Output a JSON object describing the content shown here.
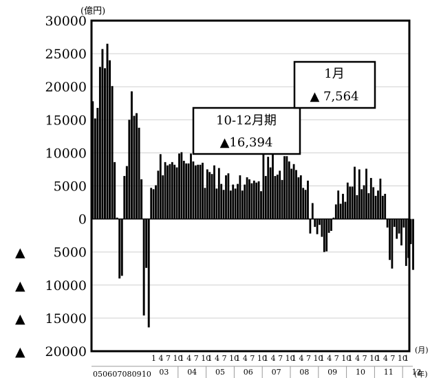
{
  "chart_data": {
    "type": "bar",
    "ylim": [
      -20000,
      30000
    ],
    "yticks": [
      {
        "value": 30000,
        "label": "30000"
      },
      {
        "value": 25000,
        "label": "25000"
      },
      {
        "value": 20000,
        "label": "20000"
      },
      {
        "value": 15000,
        "label": "15000"
      },
      {
        "value": 10000,
        "label": "10000"
      },
      {
        "value": 5000,
        "label": "5000"
      },
      {
        "value": 0,
        "label": "0"
      },
      {
        "value": -5000,
        "label": "▲ 5000"
      },
      {
        "value": -10000,
        "label": "▲ 10000"
      },
      {
        "value": -15000,
        "label": "▲ 15000"
      },
      {
        "value": -20000,
        "label": "▲ 20000"
      }
    ],
    "ylabel": "(億円)",
    "x_unit_month": "(月)",
    "x_unit_year": "(年)",
    "early_year_labels": [
      "05",
      "06",
      "07",
      "08",
      "09",
      "10"
    ],
    "month_label_text": "1 4 7 10",
    "years": [
      "03",
      "04",
      "05",
      "06",
      "07",
      "08",
      "09",
      "10",
      "11",
      "12"
    ],
    "early_values": [
      17800,
      15200,
      16800,
      23000,
      25700,
      22800,
      26500,
      24000,
      20100,
      8600,
      200,
      -9000,
      -8600,
      6500,
      8000,
      15000,
      19300,
      15600,
      16000,
      13800,
      6000,
      -14600,
      -7400,
      -16400
    ],
    "monthly_values": [
      4700,
      4500,
      5100,
      7300,
      9800,
      6600,
      8600,
      8100,
      8300,
      8600,
      8200,
      7800,
      9900,
      10100,
      8800,
      8400,
      8400,
      9900,
      8700,
      8100,
      8200,
      8200,
      8500,
      4700,
      7500,
      7100,
      6800,
      8100,
      4600,
      7700,
      5300,
      4400,
      6600,
      6900,
      4300,
      5200,
      4600,
      5300,
      6600,
      4300,
      5200,
      6300,
      6000,
      5400,
      5800,
      5500,
      5700,
      4200,
      9800,
      6500,
      9400,
      7800,
      10600,
      6500,
      6700,
      7300,
      5900,
      9500,
      9500,
      8700,
      7600,
      8300,
      7400,
      6300,
      6600,
      4700,
      4400,
      5800,
      -2200,
      2400,
      -1200,
      -2300,
      -900,
      -2700,
      -5000,
      -4900,
      -2100,
      -1800,
      200,
      2200,
      4300,
      2300,
      3800,
      2600,
      5500,
      4900,
      4900,
      7900,
      3600,
      7500,
      4500,
      5100,
      7600,
      3900,
      6200,
      4800,
      3500,
      4300,
      6100,
      3500,
      3800,
      -1300,
      -6200,
      -7500,
      -1200,
      -3000,
      -2200,
      -4000,
      -1300,
      -7100,
      -5900,
      -3800,
      -7700
    ],
    "callouts": [
      {
        "title": "10-12月期",
        "value": "▲16,394"
      },
      {
        "title": "1月",
        "value": "▲ 7,564"
      }
    ]
  }
}
